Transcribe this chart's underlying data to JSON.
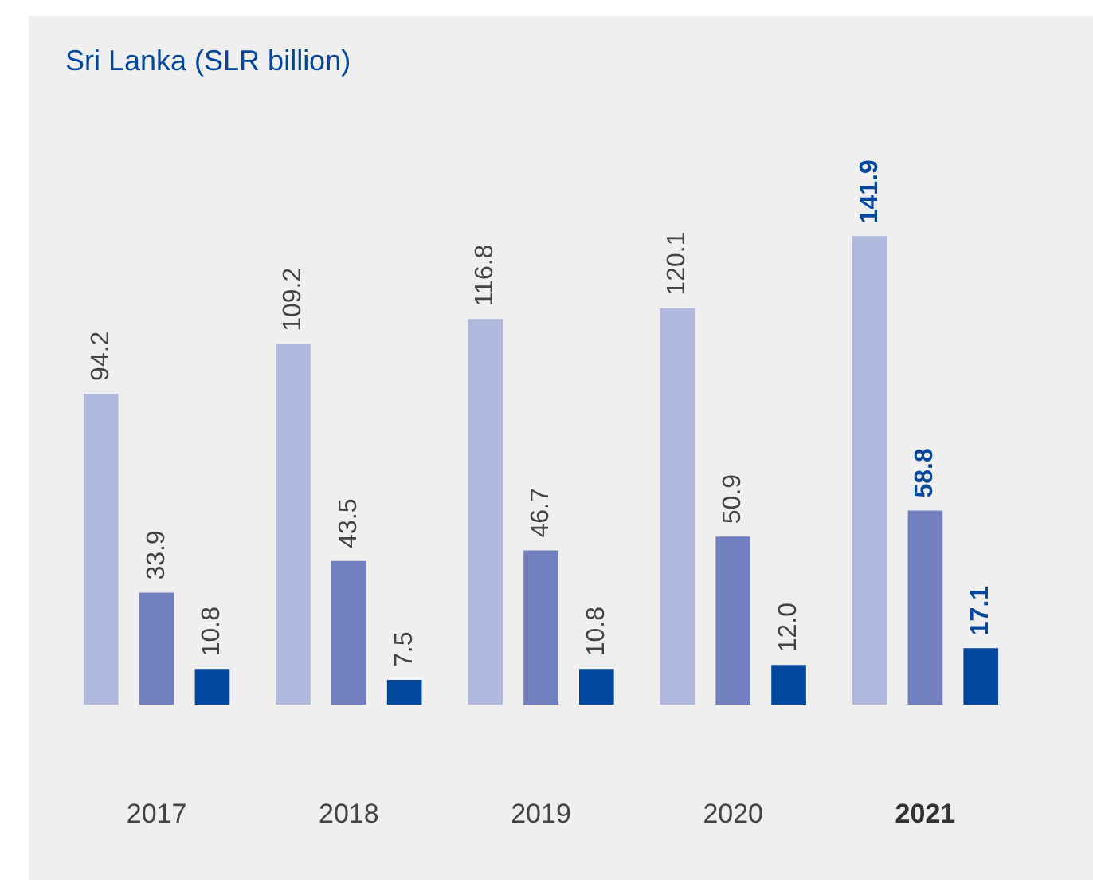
{
  "chart_data": {
    "type": "bar",
    "title": "Sri Lanka (SLR billion)",
    "categories": [
      "2017",
      "2018",
      "2019",
      "2020",
      "2021"
    ],
    "series": [
      {
        "color": "#b0b8de",
        "values": [
          94.2,
          109.2,
          116.8,
          120.1,
          141.9
        ],
        "value_labels": [
          "94.2",
          "109.2",
          "116.8",
          "120.1",
          "141.9"
        ]
      },
      {
        "color": "#717fbf",
        "values": [
          33.9,
          43.5,
          46.7,
          50.9,
          58.8
        ],
        "value_labels": [
          "33.9",
          "43.5",
          "46.7",
          "50.9",
          "58.8"
        ]
      },
      {
        "color": "#0047a0",
        "values": [
          10.8,
          7.5,
          10.8,
          12.0,
          17.1
        ],
        "value_labels": [
          "10.8",
          "7.5",
          "10.8",
          "12.0",
          "17.1"
        ]
      }
    ]
  }
}
